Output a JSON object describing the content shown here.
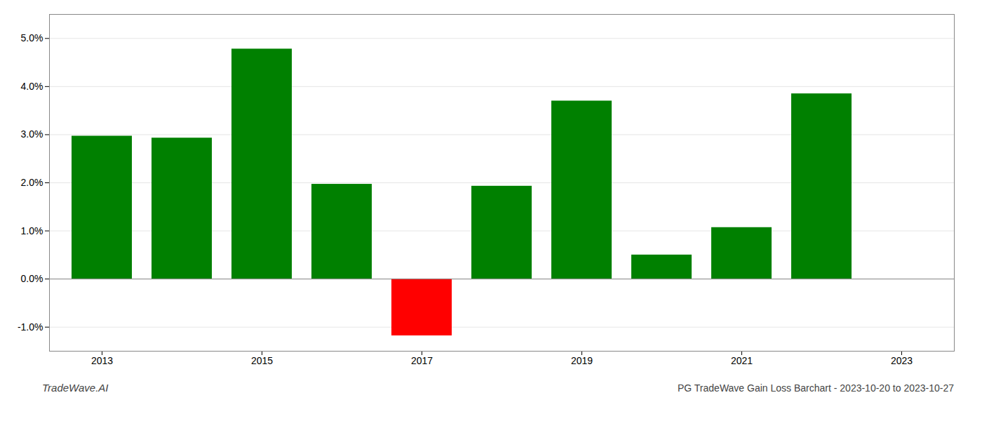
{
  "chart_data": {
    "type": "bar",
    "title": "PG TradeWave Gain Loss Barchart - 2023-10-20 to 2023-10-27",
    "annotations": [
      "TradeWave.AI"
    ],
    "categories": [
      "2013",
      null,
      "2015",
      null,
      "2017",
      null,
      "2019",
      null,
      "2021",
      null,
      "2023"
    ],
    "values": [
      0.0297,
      0.0293,
      0.0478,
      0.0197,
      -0.0118,
      0.0193,
      0.037,
      0.005,
      0.0107,
      0.0385,
      null
    ],
    "colors": [
      "#008000",
      "#008000",
      "#008000",
      "#008000",
      "#ff0000",
      "#008000",
      "#008000",
      "#008000",
      "#008000",
      "#008000",
      "#008000"
    ],
    "ylim": [
      -0.015,
      0.055
    ],
    "yticks": [
      {
        "value": -0.01,
        "label": "-1.0%"
      },
      {
        "value": 0.0,
        "label": "0.0%"
      },
      {
        "value": 0.01,
        "label": "1.0%"
      },
      {
        "value": 0.02,
        "label": "2.0%"
      },
      {
        "value": 0.03,
        "label": "3.0%"
      },
      {
        "value": 0.04,
        "label": "4.0%"
      },
      {
        "value": 0.05,
        "label": "5.0%"
      }
    ],
    "grid": true
  }
}
